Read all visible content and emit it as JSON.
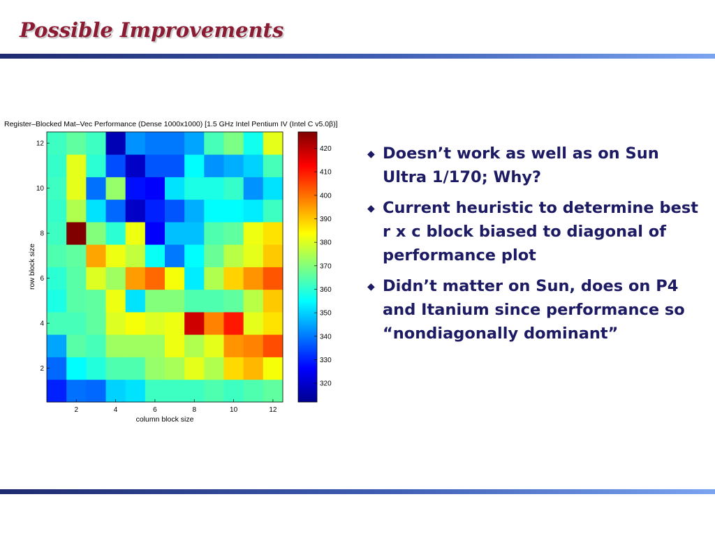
{
  "slide": {
    "title": "Possible Improvements",
    "bullets": [
      "Doesn’t work as well as on Sun Ultra 1/170; Why?",
      "Current heuristic to determine best r x c block biased to diagonal of performance plot",
      "Didn’t matter on Sun, does on P4 and Itanium since performance so “nondiagonally dominant”"
    ],
    "bullet_icon": "diamond-bullet-icon",
    "colors": {
      "title": "#8b1a33",
      "text": "#1c1a63",
      "rule": "#3f5fb5"
    }
  },
  "chart_data": {
    "type": "heatmap",
    "title": "Register–Blocked Mat–Vec Performance (Dense 1000x1000) [1.5 GHz Intel Pentium IV (Intel C v5.0β)]",
    "xlabel": "column block size",
    "ylabel": "row block size",
    "x": [
      1,
      2,
      3,
      4,
      5,
      6,
      7,
      8,
      9,
      10,
      11,
      12
    ],
    "y": [
      1,
      2,
      3,
      4,
      5,
      6,
      7,
      8,
      9,
      10,
      11,
      12
    ],
    "x_ticks": [
      2,
      4,
      6,
      8,
      10,
      12
    ],
    "y_ticks": [
      2,
      4,
      6,
      8,
      10,
      12
    ],
    "colorbar": {
      "min": 312,
      "max": 427,
      "ticks": [
        320,
        330,
        340,
        350,
        360,
        370,
        380,
        390,
        400,
        410,
        420
      ],
      "colormap": "jet"
    },
    "values": [
      [
        330,
        339,
        338,
        350,
        352,
        362,
        362,
        362,
        364,
        362,
        364,
        366
      ],
      [
        338,
        355,
        359,
        364,
        364,
        372,
        374,
        381,
        375,
        388,
        392,
        383
      ],
      [
        345,
        365,
        363,
        373,
        373,
        373,
        382,
        375,
        381,
        396,
        398,
        404
      ],
      [
        363,
        363,
        366,
        380,
        383,
        380,
        382,
        418,
        398,
        410,
        381,
        387
      ],
      [
        358,
        365,
        366,
        382,
        352,
        370,
        370,
        364,
        364,
        366,
        376,
        390
      ],
      [
        360,
        365,
        380,
        373,
        395,
        401,
        383,
        353,
        375,
        389,
        396,
        403
      ],
      [
        364,
        366,
        394,
        382,
        377,
        356,
        340,
        355,
        367,
        376,
        381,
        390
      ],
      [
        362,
        427,
        370,
        360,
        382,
        326,
        348,
        348,
        364,
        366,
        382,
        387
      ],
      [
        361,
        375,
        352,
        338,
        320,
        330,
        336,
        346,
        355,
        355,
        353,
        362
      ],
      [
        362,
        381,
        339,
        372,
        328,
        326,
        352,
        358,
        358,
        361,
        343,
        352
      ],
      [
        361,
        381,
        360,
        335,
        320,
        336,
        336,
        355,
        343,
        346,
        350,
        363
      ],
      [
        362,
        366,
        362,
        318,
        343,
        340,
        340,
        345,
        363,
        369,
        357,
        381
      ]
    ]
  }
}
